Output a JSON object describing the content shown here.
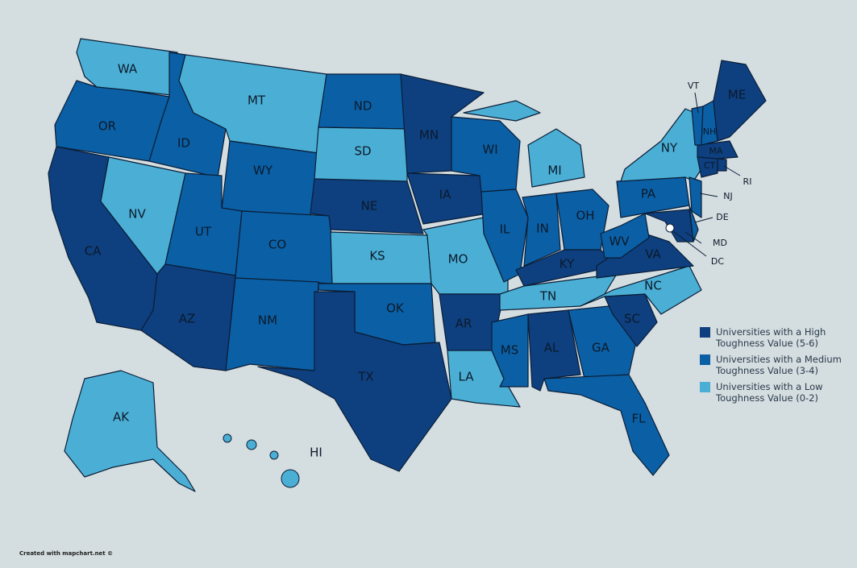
{
  "map": {
    "type": "choropleth",
    "legend": [
      {
        "label": "Universities with a High Toughness Value (5-6)",
        "color": "#0e3f7f"
      },
      {
        "label": "Universities with a Medium Toughness Value (3-4)",
        "color": "#0b5fa5"
      },
      {
        "label": "Universities with a Low Toughness Value (0-2)",
        "color": "#4bafd5"
      }
    ],
    "states": [
      {
        "label": "WA",
        "group": 2
      },
      {
        "label": "OR",
        "group": 1
      },
      {
        "label": "CA",
        "group": 0
      },
      {
        "label": "NV",
        "group": 2
      },
      {
        "label": "ID",
        "group": 1
      },
      {
        "label": "MT",
        "group": 2
      },
      {
        "label": "WY",
        "group": 1
      },
      {
        "label": "UT",
        "group": 1
      },
      {
        "label": "CO",
        "group": 1
      },
      {
        "label": "AZ",
        "group": 0
      },
      {
        "label": "NM",
        "group": 1
      },
      {
        "label": "ND",
        "group": 1
      },
      {
        "label": "SD",
        "group": 2
      },
      {
        "label": "NE",
        "group": 0
      },
      {
        "label": "KS",
        "group": 2
      },
      {
        "label": "OK",
        "group": 1
      },
      {
        "label": "TX",
        "group": 0
      },
      {
        "label": "MN",
        "group": 0
      },
      {
        "label": "IA",
        "group": 0
      },
      {
        "label": "MO",
        "group": 2
      },
      {
        "label": "AR",
        "group": 0
      },
      {
        "label": "LA",
        "group": 2
      },
      {
        "label": "WI",
        "group": 1
      },
      {
        "label": "IL",
        "group": 1
      },
      {
        "label": "MI",
        "group": 2
      },
      {
        "label": "IN",
        "group": 1
      },
      {
        "label": "OH",
        "group": 1
      },
      {
        "label": "KY",
        "group": 0
      },
      {
        "label": "TN",
        "group": 2
      },
      {
        "label": "MS",
        "group": 1
      },
      {
        "label": "AL",
        "group": 0
      },
      {
        "label": "GA",
        "group": 1
      },
      {
        "label": "FL",
        "group": 1
      },
      {
        "label": "SC",
        "group": 0
      },
      {
        "label": "NC",
        "group": 2
      },
      {
        "label": "VA",
        "group": 0
      },
      {
        "label": "WV",
        "group": 1
      },
      {
        "label": "PA",
        "group": 1
      },
      {
        "label": "NY",
        "group": 2
      },
      {
        "label": "MD",
        "group": 0
      },
      {
        "label": "DE",
        "group": 1
      },
      {
        "label": "NJ",
        "group": 1
      },
      {
        "label": "CT",
        "group": 0
      },
      {
        "label": "RI",
        "group": 0
      },
      {
        "label": "MA",
        "group": 0
      },
      {
        "label": "VT",
        "group": 1
      },
      {
        "label": "NH",
        "group": 1
      },
      {
        "label": "ME",
        "group": 0
      },
      {
        "label": "AK",
        "group": 2
      },
      {
        "label": "HI",
        "group": 2
      },
      {
        "label": "DC",
        "group": 2
      }
    ],
    "credit": "Created with mapchart.net ©"
  }
}
